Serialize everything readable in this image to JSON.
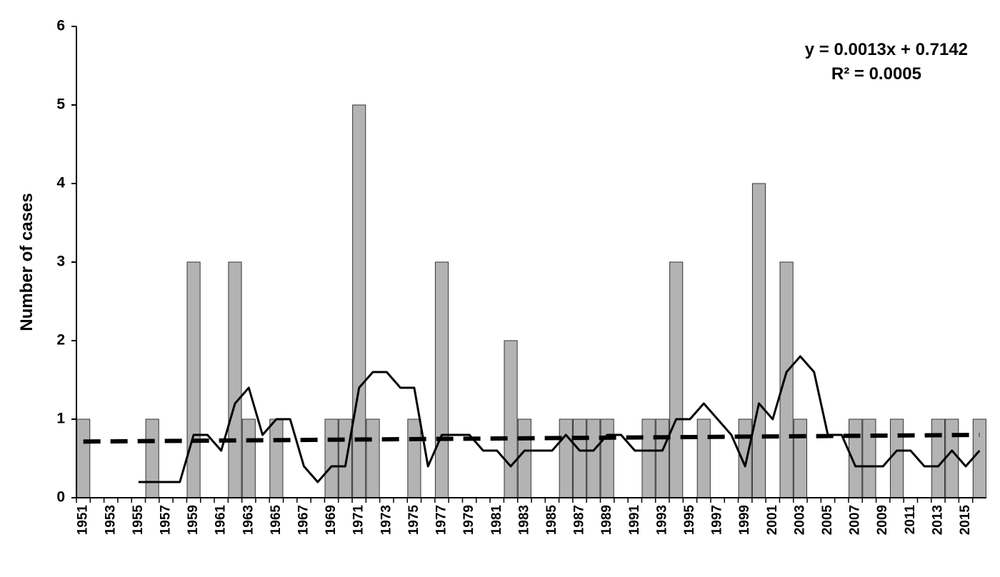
{
  "chart_data": {
    "type": "bar",
    "ylabel": "Number of cases",
    "equation": "y = 0.0013x + 0.7142",
    "r_squared": "R² = 0.0005",
    "categories": [
      "1951",
      null,
      "1953",
      null,
      "1955",
      null,
      "1957",
      null,
      "1959",
      null,
      "1961",
      null,
      "1963",
      null,
      "1965",
      null,
      "1967",
      null,
      "1969",
      null,
      "1971",
      null,
      "1973",
      null,
      "1975",
      null,
      "1977",
      null,
      "1979",
      null,
      "1981",
      null,
      "1983",
      null,
      "1985",
      null,
      "1987",
      null,
      "1989",
      null,
      "1991",
      null,
      "1993",
      null,
      "1995",
      null,
      "1997",
      null,
      "1999",
      null,
      "2001",
      null,
      "2003",
      null,
      "2005",
      null,
      "2007",
      null,
      "2009",
      null,
      "2011",
      null,
      "2013",
      null,
      "2015",
      null
    ],
    "values": [
      1,
      0,
      0,
      0,
      0,
      1,
      0,
      0,
      3,
      0,
      0,
      3,
      1,
      0,
      1,
      0,
      0,
      0,
      1,
      1,
      5,
      1,
      0,
      0,
      1,
      0,
      3,
      0,
      0,
      0,
      0,
      2,
      1,
      0,
      0,
      1,
      1,
      1,
      1,
      0,
      0,
      1,
      1,
      3,
      0,
      1,
      0,
      0,
      1,
      4,
      0,
      3,
      1,
      0,
      0,
      0,
      1,
      1,
      0,
      1,
      0,
      0,
      1,
      1,
      0,
      1
    ],
    "color": "#b3b3b3",
    "moving_average": {
      "color": "#000000",
      "values": [
        null,
        null,
        null,
        null,
        0.2,
        0.2,
        0.2,
        0.2,
        0.8,
        0.8,
        0.6,
        1.2,
        1.4,
        0.8,
        1,
        1,
        0.4,
        0.2,
        0.4,
        0.4,
        1.4,
        1.6,
        1.6,
        1.4,
        1.4,
        0.4,
        0.8,
        0.8,
        0.8,
        0.6,
        0.6,
        0.4,
        0.6,
        0.6,
        0.6,
        0.8,
        0.6,
        0.6,
        0.8,
        0.8,
        0.6,
        0.6,
        0.6,
        1,
        1,
        1.2,
        1,
        0.8,
        0.4,
        1.2,
        1,
        1.6,
        1.8,
        1.6,
        0.8,
        0.8,
        0.4,
        0.4,
        0.4,
        0.6,
        0.6,
        0.4,
        0.4,
        0.6,
        0.4,
        0.6
      ]
    },
    "trend": {
      "color": "#000000",
      "values": [
        0.715,
        0.8
      ]
    },
    "ylim": [
      0,
      6
    ],
    "yticks": [
      0,
      1,
      2,
      3,
      4,
      5,
      6
    ],
    "grid": false
  }
}
